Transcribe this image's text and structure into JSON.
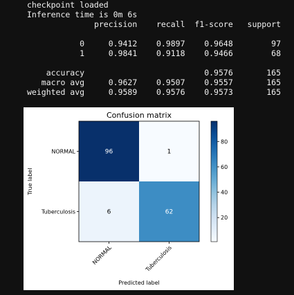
{
  "log_lines": [
    "checkpoint loaded",
    "Inference time is 0m 6s"
  ],
  "report": {
    "headers": [
      "precision",
      "recall",
      "f1-score",
      "support"
    ],
    "rows": [
      {
        "label": "0",
        "precision": "0.9412",
        "recall": "0.9897",
        "f1": "0.9648",
        "support": "97"
      },
      {
        "label": "1",
        "precision": "0.9841",
        "recall": "0.9118",
        "f1": "0.9466",
        "support": "68"
      }
    ],
    "summary": [
      {
        "label": "accuracy",
        "precision": "",
        "recall": "",
        "f1": "0.9576",
        "support": "165"
      },
      {
        "label": "macro avg",
        "precision": "0.9627",
        "recall": "0.9507",
        "f1": "0.9557",
        "support": "165"
      },
      {
        "label": "weighted avg",
        "precision": "0.9589",
        "recall": "0.9576",
        "f1": "0.9573",
        "support": "165"
      }
    ]
  },
  "chart_data": {
    "type": "heatmap",
    "title": "Confusion matrix",
    "xlabel": "Predicted label",
    "ylabel": "True label",
    "x_categories": [
      "NORMAL",
      "Tuberculosis"
    ],
    "y_categories": [
      "NORMAL",
      "Tuberculosis"
    ],
    "values": [
      [
        96,
        1
      ],
      [
        6,
        62
      ]
    ],
    "colormap": "Blues",
    "colorbar": {
      "range": [
        1,
        96
      ],
      "ticks": [
        20,
        40,
        60,
        80
      ]
    },
    "colors": {
      "low": "#f7fbff",
      "high": "#08306b"
    }
  }
}
